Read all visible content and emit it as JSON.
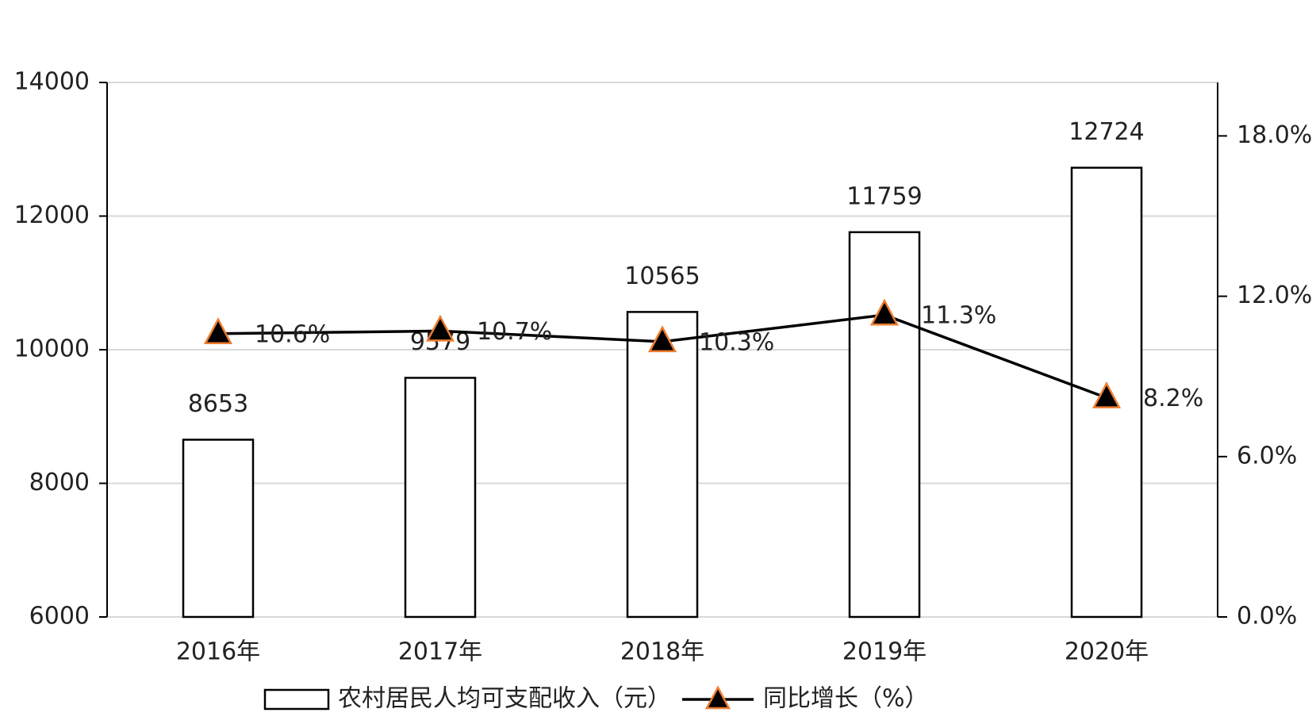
{
  "chart_data": {
    "type": "bar",
    "categories": [
      "2016年",
      "2017年",
      "2018年",
      "2019年",
      "2020年"
    ],
    "series": [
      {
        "name": "农村居民人均可支配收入（元）",
        "type": "bar",
        "color": "#ffffff",
        "edgecolor": "#000000",
        "values": [
          8653,
          9579,
          10565,
          11759,
          12724
        ]
      },
      {
        "name": "同比增长（%）",
        "type": "line",
        "axis": "y2",
        "color": "#000000",
        "marker_edge": "#ed7d31",
        "values": [
          10.6,
          10.7,
          10.3,
          11.3,
          8.2
        ],
        "value_labels": [
          "10.6%",
          "10.7%",
          "10.3%",
          "11.3%",
          "8.2%"
        ]
      }
    ],
    "ylim": [
      6000,
      14000
    ],
    "yticks": [
      6000,
      8000,
      10000,
      12000,
      14000
    ],
    "y2lim": [
      0,
      20
    ],
    "y2ticks": [
      {
        "value": 0,
        "label": "0.0%"
      },
      {
        "value": 6,
        "label": "6.0%"
      },
      {
        "value": 12,
        "label": "12.0%"
      },
      {
        "value": 18,
        "label": "18.0%"
      }
    ],
    "grid": true,
    "legend": "bottom"
  }
}
